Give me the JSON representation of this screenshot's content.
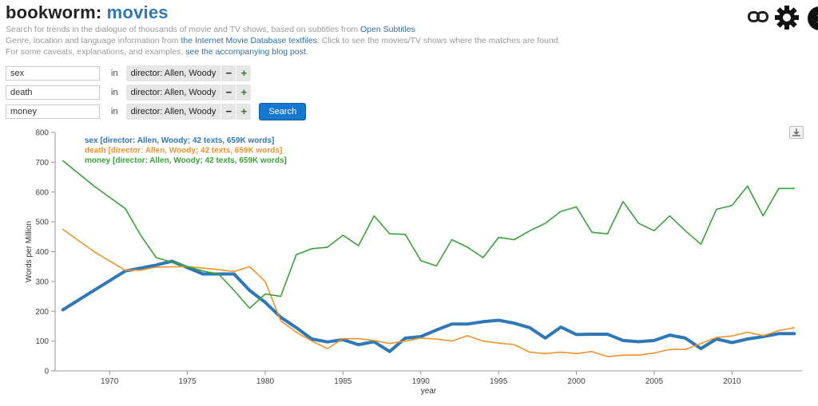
{
  "header": {
    "title_part1": "bookworm:",
    "title_part2": "movies",
    "line1_text": "Search for trends in the dialogue of thousands of movie and TV shows, based on subtitles from",
    "line1_link": "Open Subtitles",
    "line2_text_a": "Genre, location and language information from",
    "line2_link": "the Internet Movie Database textfiles",
    "line2_text_b": ". Click to see the movies/TV shows where the matches are found.",
    "line3_text": "For some caveats, explanations, and examples,",
    "line3_link": "see the accompanying blog post",
    "line3_end": "."
  },
  "queries": [
    {
      "word": "sex",
      "in_label": "in",
      "corpus": "director: Allen, Woody",
      "minus": "−",
      "plus": "+"
    },
    {
      "word": "death",
      "in_label": "in",
      "corpus": "director: Allen, Woody",
      "minus": "−",
      "plus": "+"
    },
    {
      "word": "money",
      "in_label": "in",
      "corpus": "director: Allen, Woody",
      "minus": "−",
      "plus": "+"
    }
  ],
  "search_label": "Search",
  "icons": {
    "link": "chain-link-icon",
    "settings": "gear-icon",
    "info": "info-circle-icon",
    "download": "download-icon"
  },
  "info_glyph": "i",
  "chart_data": {
    "type": "line",
    "xlabel": "year",
    "ylabel": "Words per Million",
    "xlim": [
      1966.5,
      2014.5
    ],
    "ylim": [
      0,
      800
    ],
    "yticks": [
      0,
      100,
      200,
      300,
      400,
      500,
      600,
      700,
      800
    ],
    "xticks": [
      1970,
      1975,
      1980,
      1985,
      1990,
      1995,
      2000,
      2005,
      2010
    ],
    "grid": false,
    "legend": "top-left",
    "series": [
      {
        "name": "sex [director: Allen, Woody; 42 texts, 659K words]",
        "color": "#2e78b7",
        "width": 4,
        "x": [
          1967,
          1969,
          1971,
          1973,
          1974,
          1976,
          1978,
          1979,
          1980,
          1981,
          1982,
          1983,
          1984,
          1985,
          1986,
          1987,
          1988,
          1989,
          1990,
          1991,
          1992,
          1993,
          1994,
          1995,
          1996,
          1997,
          1998,
          1999,
          2000,
          2001,
          2002,
          2003,
          2004,
          2005,
          2006,
          2007,
          2008,
          2009,
          2010,
          2011,
          2012,
          2013,
          2014
        ],
        "values": [
          205,
          270,
          335,
          355,
          368,
          325,
          325,
          270,
          230,
          180,
          145,
          107,
          97,
          105,
          88,
          98,
          65,
          110,
          115,
          137,
          157,
          157,
          165,
          170,
          160,
          145,
          110,
          147,
          122,
          123,
          123,
          102,
          98,
          102,
          120,
          110,
          75,
          107,
          95,
          107,
          115,
          125,
          125
        ]
      },
      {
        "name": "death [director: Allen, Woody; 42 texts, 659K words]",
        "color": "#f0922a",
        "width": 1.6,
        "x": [
          1967,
          1969,
          1971,
          1972,
          1973,
          1975,
          1977,
          1978,
          1979,
          1980,
          1981,
          1982,
          1983,
          1984,
          1985,
          1986,
          1987,
          1988,
          1989,
          1990,
          1991,
          1992,
          1993,
          1994,
          1995,
          1996,
          1997,
          1998,
          1999,
          2000,
          2001,
          2002,
          2003,
          2004,
          2005,
          2006,
          2007,
          2008,
          2009,
          2010,
          2011,
          2012,
          2013,
          2014
        ],
        "values": [
          475,
          400,
          338,
          338,
          348,
          350,
          340,
          333,
          350,
          300,
          168,
          130,
          100,
          75,
          108,
          108,
          102,
          92,
          100,
          110,
          107,
          100,
          118,
          100,
          93,
          88,
          63,
          58,
          63,
          58,
          65,
          48,
          53,
          53,
          60,
          72,
          72,
          92,
          112,
          117,
          130,
          118,
          135,
          145
        ]
      },
      {
        "name": "money [director: Allen, Woody; 42 texts, 659K words]",
        "color": "#3aa23a",
        "width": 1.6,
        "x": [
          1967,
          1969,
          1971,
          1972,
          1973,
          1975,
          1976,
          1977,
          1978,
          1979,
          1980,
          1981,
          1982,
          1983,
          1984,
          1985,
          1986,
          1987,
          1988,
          1989,
          1990,
          1991,
          1992,
          1993,
          1994,
          1995,
          1996,
          1997,
          1998,
          1999,
          2000,
          2001,
          2002,
          2003,
          2004,
          2005,
          2006,
          2007,
          2008,
          2009,
          2010,
          2011,
          2012,
          2013,
          2014
        ],
        "values": [
          705,
          620,
          545,
          455,
          380,
          350,
          335,
          325,
          270,
          210,
          258,
          250,
          390,
          410,
          415,
          455,
          420,
          520,
          460,
          458,
          370,
          352,
          440,
          415,
          380,
          448,
          440,
          470,
          495,
          535,
          550,
          465,
          460,
          568,
          495,
          470,
          520,
          470,
          425,
          542,
          555,
          620,
          520,
          612,
          612
        ]
      }
    ]
  }
}
